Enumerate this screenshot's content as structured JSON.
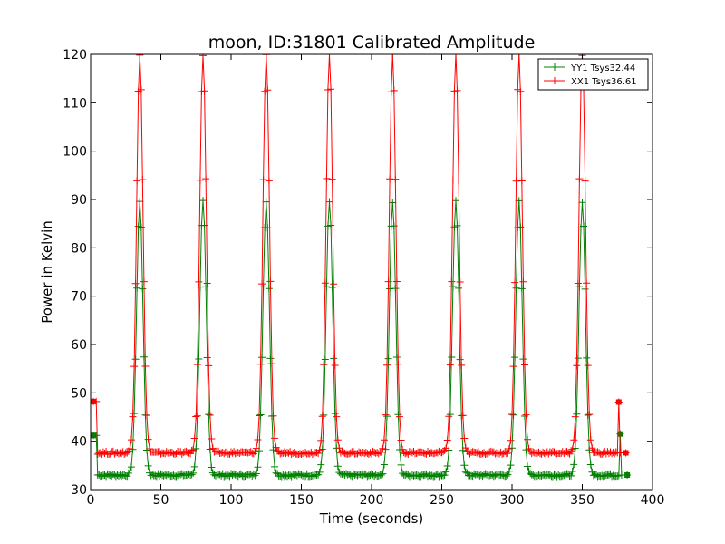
{
  "chart_data": {
    "type": "line",
    "title": "moon, ID:31801 Calibrated Amplitude",
    "xlabel": "Time (seconds)",
    "ylabel": "Power in Kelvin",
    "xlim": [
      0,
      400
    ],
    "ylim": [
      30,
      120
    ],
    "xticks": [
      0,
      50,
      100,
      150,
      200,
      250,
      300,
      350,
      400
    ],
    "yticks": [
      30,
      40,
      50,
      60,
      70,
      80,
      90,
      100,
      110,
      120
    ],
    "grid": false,
    "legend_position": "top-right",
    "peak_centers": [
      35,
      80,
      125,
      170,
      215,
      260,
      305,
      350
    ],
    "series": [
      {
        "name": "YY1 Tsys32.44",
        "color": "#008000",
        "baseline": 33.0,
        "peak": 89.5,
        "start_value": 41.2,
        "end_value": 41.5,
        "edge_x": [
          2,
          377
        ]
      },
      {
        "name": "XX1 Tsys36.61",
        "color": "#ff0000",
        "baseline": 37.6,
        "peak": 120,
        "start_value": 48.2,
        "end_value": 48.1,
        "edge_x": [
          2,
          376
        ]
      }
    ]
  }
}
